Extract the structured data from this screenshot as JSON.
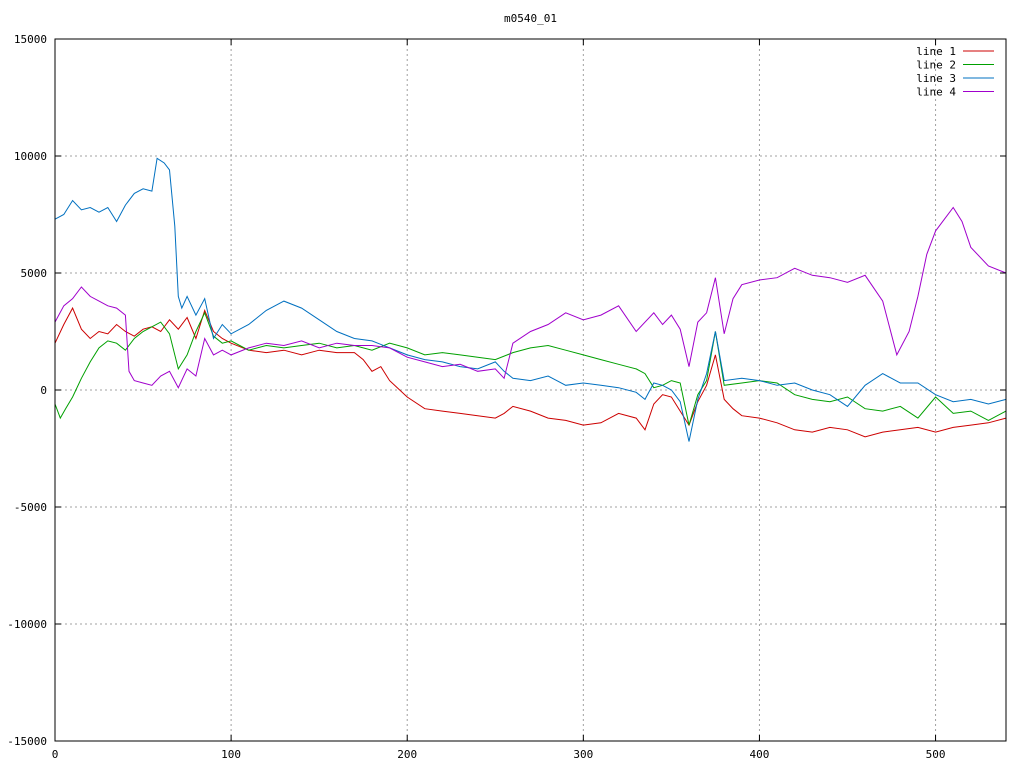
{
  "chart_data": {
    "type": "line",
    "title": "m0540_01",
    "xlabel": "",
    "ylabel": "",
    "xlim": [
      0,
      540
    ],
    "ylim": [
      -15000,
      15000
    ],
    "x_ticks": [
      0,
      100,
      200,
      300,
      400,
      500
    ],
    "y_ticks": [
      -15000,
      -10000,
      -5000,
      0,
      5000,
      10000,
      15000
    ],
    "grid": true,
    "legend_position": "top-right",
    "series": [
      {
        "name": "line 1",
        "color": "#cc0000",
        "x": [
          0,
          5,
          10,
          15,
          20,
          25,
          30,
          35,
          40,
          45,
          50,
          55,
          60,
          65,
          70,
          75,
          80,
          85,
          90,
          95,
          100,
          110,
          120,
          130,
          140,
          150,
          160,
          170,
          175,
          180,
          185,
          190,
          200,
          210,
          220,
          230,
          240,
          250,
          255,
          260,
          270,
          280,
          290,
          300,
          310,
          320,
          330,
          335,
          340,
          345,
          350,
          355,
          360,
          365,
          370,
          375,
          380,
          385,
          390,
          400,
          410,
          420,
          430,
          440,
          450,
          460,
          470,
          480,
          490,
          500,
          510,
          520,
          530,
          540
        ],
        "y": [
          2000,
          2800,
          3500,
          2600,
          2200,
          2500,
          2400,
          2800,
          2500,
          2300,
          2600,
          2700,
          2500,
          3000,
          2600,
          3100,
          2200,
          3400,
          2500,
          2200,
          2000,
          1700,
          1600,
          1700,
          1500,
          1700,
          1600,
          1600,
          1300,
          800,
          1000,
          400,
          -300,
          -800,
          -900,
          -1000,
          -1100,
          -1200,
          -1000,
          -700,
          -900,
          -1200,
          -1300,
          -1500,
          -1400,
          -1000,
          -1200,
          -1700,
          -600,
          -200,
          -300,
          -900,
          -1500,
          -500,
          200,
          1500,
          -400,
          -800,
          -1100,
          -1200,
          -1400,
          -1700,
          -1800,
          -1600,
          -1700,
          -2000,
          -1800,
          -1700,
          -1600,
          -1800,
          -1600,
          -1500,
          -1400,
          -1200
        ]
      },
      {
        "name": "line 2",
        "color": "#00a000",
        "x": [
          0,
          3,
          6,
          10,
          15,
          20,
          25,
          30,
          35,
          40,
          45,
          50,
          55,
          60,
          65,
          70,
          75,
          80,
          85,
          90,
          95,
          100,
          110,
          120,
          130,
          140,
          150,
          160,
          170,
          180,
          190,
          200,
          210,
          220,
          230,
          240,
          250,
          260,
          270,
          280,
          290,
          300,
          310,
          320,
          330,
          335,
          340,
          345,
          350,
          355,
          360,
          365,
          370,
          375,
          380,
          390,
          400,
          410,
          420,
          430,
          440,
          450,
          460,
          470,
          480,
          490,
          500,
          510,
          520,
          530,
          540
        ],
        "y": [
          -600,
          -1200,
          -800,
          -300,
          500,
          1200,
          1800,
          2100,
          2000,
          1700,
          2200,
          2500,
          2700,
          2900,
          2400,
          900,
          1500,
          2500,
          3300,
          2300,
          2000,
          2100,
          1700,
          1900,
          1800,
          1900,
          2000,
          1800,
          1900,
          1700,
          2000,
          1800,
          1500,
          1600,
          1500,
          1400,
          1300,
          1600,
          1800,
          1900,
          1700,
          1500,
          1300,
          1100,
          900,
          700,
          100,
          200,
          400,
          300,
          -1500,
          -200,
          400,
          2500,
          200,
          300,
          400,
          300,
          -200,
          -400,
          -500,
          -300,
          -800,
          -900,
          -700,
          -1200,
          -300,
          -1000,
          -900,
          -1300,
          -900
        ]
      },
      {
        "name": "line 3",
        "color": "#0070c0",
        "x": [
          0,
          5,
          10,
          15,
          20,
          25,
          30,
          35,
          40,
          45,
          50,
          55,
          58,
          62,
          65,
          68,
          70,
          72,
          75,
          80,
          85,
          90,
          95,
          100,
          110,
          120,
          130,
          140,
          150,
          160,
          170,
          180,
          190,
          200,
          210,
          220,
          230,
          240,
          250,
          255,
          260,
          270,
          280,
          290,
          300,
          310,
          320,
          330,
          335,
          340,
          345,
          350,
          355,
          360,
          365,
          370,
          375,
          380,
          390,
          400,
          410,
          420,
          430,
          440,
          450,
          460,
          470,
          480,
          490,
          500,
          510,
          520,
          530,
          540
        ],
        "y": [
          7300,
          7500,
          8100,
          7700,
          7800,
          7600,
          7800,
          7200,
          7900,
          8400,
          8600,
          8500,
          9900,
          9700,
          9400,
          7000,
          4000,
          3500,
          4000,
          3200,
          3900,
          2200,
          2800,
          2400,
          2800,
          3400,
          3800,
          3500,
          3000,
          2500,
          2200,
          2100,
          1800,
          1500,
          1300,
          1200,
          1000,
          900,
          1200,
          800,
          500,
          400,
          600,
          200,
          300,
          200,
          100,
          -100,
          -400,
          300,
          200,
          0,
          -500,
          -2200,
          -400,
          700,
          2500,
          400,
          500,
          400,
          200,
          300,
          0,
          -200,
          -700,
          200,
          700,
          300,
          300,
          -200,
          -500,
          -400,
          -600,
          -400
        ]
      },
      {
        "name": "line 4",
        "color": "#a000cc",
        "x": [
          0,
          5,
          10,
          15,
          20,
          25,
          30,
          35,
          40,
          42,
          45,
          50,
          55,
          60,
          65,
          70,
          75,
          80,
          85,
          90,
          95,
          100,
          110,
          120,
          130,
          140,
          150,
          160,
          170,
          180,
          190,
          200,
          210,
          220,
          230,
          240,
          250,
          255,
          260,
          270,
          280,
          290,
          300,
          310,
          320,
          330,
          340,
          345,
          350,
          355,
          360,
          365,
          370,
          375,
          380,
          385,
          390,
          400,
          410,
          420,
          430,
          440,
          450,
          460,
          470,
          478,
          485,
          490,
          495,
          500,
          505,
          510,
          515,
          520,
          530,
          540
        ],
        "y": [
          2900,
          3600,
          3900,
          4400,
          4000,
          3800,
          3600,
          3500,
          3200,
          800,
          400,
          300,
          200,
          600,
          800,
          100,
          900,
          600,
          2200,
          1500,
          1700,
          1500,
          1800,
          2000,
          1900,
          2100,
          1800,
          2000,
          1900,
          1900,
          1800,
          1400,
          1200,
          1000,
          1100,
          800,
          900,
          500,
          2000,
          2500,
          2800,
          3300,
          3000,
          3200,
          3600,
          2500,
          3300,
          2800,
          3200,
          2600,
          1000,
          2900,
          3300,
          4800,
          2400,
          3900,
          4500,
          4700,
          4800,
          5200,
          4900,
          4800,
          4600,
          4900,
          3800,
          1500,
          2500,
          4000,
          5800,
          6800,
          7300,
          7800,
          7200,
          6100,
          5300,
          5000
        ]
      }
    ]
  }
}
